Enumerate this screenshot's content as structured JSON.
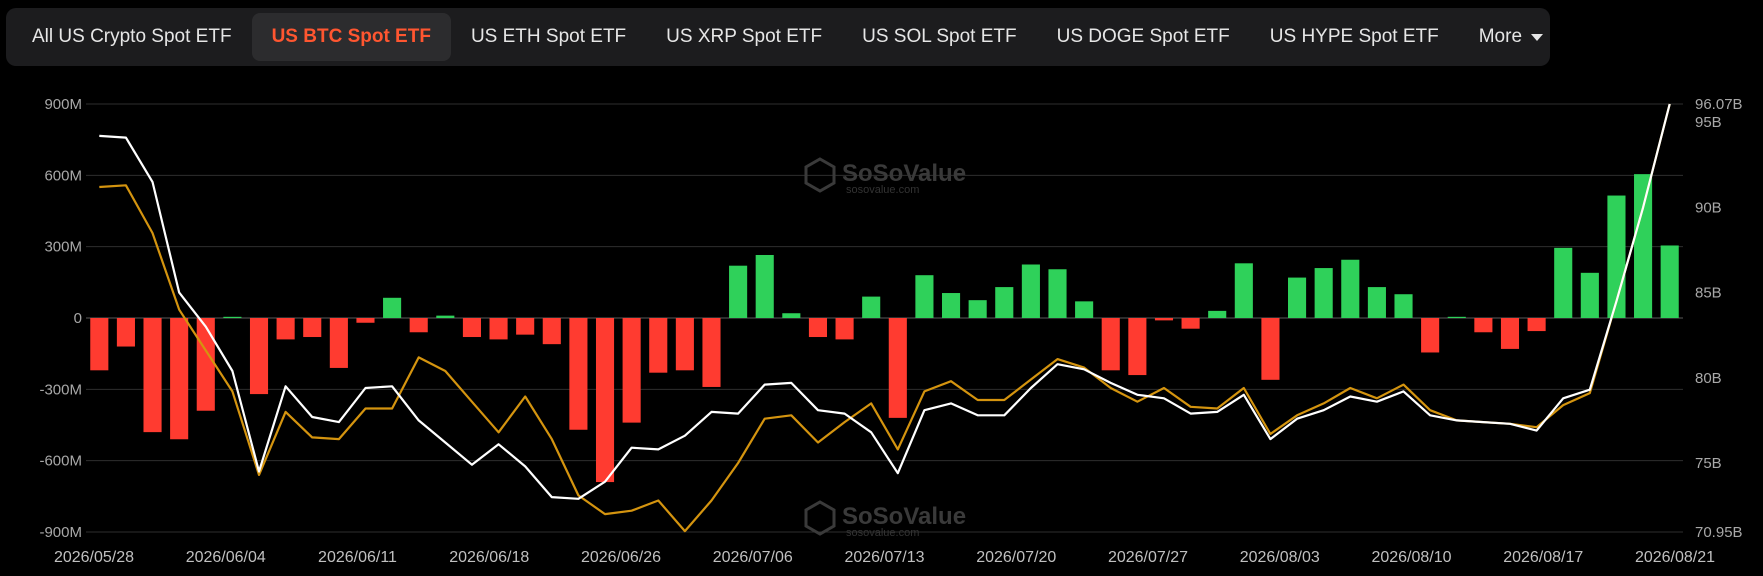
{
  "tabs": [
    {
      "label": "All US Crypto Spot ETF",
      "active": false
    },
    {
      "label": "US BTC Spot ETF",
      "active": true
    },
    {
      "label": "US ETH Spot ETF",
      "active": false
    },
    {
      "label": "US XRP Spot ETF",
      "active": false
    },
    {
      "label": "US SOL Spot ETF",
      "active": false
    },
    {
      "label": "US DOGE Spot ETF",
      "active": false
    },
    {
      "label": "US HYPE Spot ETF",
      "active": false
    }
  ],
  "more_label": "More",
  "watermark": {
    "brand": "SoSoValue",
    "site": "sosovalue.com"
  },
  "colors": {
    "inflow": "#2fd15a",
    "outflow": "#ff3b30",
    "net_assets_line": "#ffffff",
    "cumulative_line": "#d4940f",
    "active_tab": "#ff5630"
  },
  "chart_data": {
    "type": "bar",
    "x_tick_labels": [
      "2026/05/28",
      "2026/06/04",
      "2026/06/11",
      "2026/06/18",
      "2026/06/26",
      "2026/07/06",
      "2026/07/13",
      "2026/07/20",
      "2026/07/27",
      "2026/08/03",
      "2026/08/10",
      "2026/08/17",
      "2026/08/21"
    ],
    "y_left": {
      "ticks": [
        "900M",
        "600M",
        "300M",
        "0",
        "-300M",
        "-600M",
        "-900M"
      ],
      "ylim": [
        -900,
        900
      ],
      "unit": "M"
    },
    "y_right": {
      "ticks": [
        "96.07B",
        "95B",
        "90B",
        "85B",
        "80B",
        "75B",
        "70.95B"
      ],
      "ylim": [
        70.95,
        96.07
      ],
      "unit": "B"
    },
    "grid": true,
    "series": [
      {
        "kind": "bar",
        "values": [
          -220,
          -120,
          -480,
          -510,
          -390,
          5,
          -320,
          -90,
          -80,
          -210,
          -20,
          85,
          -60,
          10,
          -80,
          -90,
          -70,
          -110,
          -470,
          -690,
          -440,
          -230,
          -220,
          -290,
          220,
          265,
          20,
          -80,
          -90,
          90,
          -420,
          180,
          105,
          75,
          130,
          225,
          205,
          70,
          -220,
          -240,
          -10,
          -45,
          30,
          230,
          -260,
          170,
          210,
          245,
          130,
          100,
          -145,
          5,
          -60,
          -130,
          -55,
          295,
          190,
          515,
          605,
          305
        ]
      },
      {
        "kind": "line",
        "axis": "right",
        "values": [
          94.2,
          94.1,
          91.5,
          85.0,
          83.0,
          80.4,
          74.5,
          79.5,
          77.7,
          77.4,
          79.4,
          79.5,
          77.5,
          76.2,
          74.9,
          76.1,
          74.8,
          73.0,
          72.9,
          73.9,
          75.9,
          75.8,
          76.6,
          78.0,
          77.9,
          79.6,
          79.7,
          78.1,
          77.9,
          76.8,
          74.4,
          78.1,
          78.5,
          77.8,
          77.8,
          79.4,
          80.8,
          80.5,
          79.7,
          79.0,
          78.8,
          77.9,
          78.0,
          79.0,
          76.4,
          77.6,
          78.1,
          78.9,
          78.6,
          79.2,
          77.8,
          77.5,
          77.4,
          77.3,
          76.9,
          78.8,
          79.3,
          84.5,
          90.0,
          96.07
        ]
      },
      {
        "kind": "line",
        "axis": "right",
        "values": [
          91.2,
          91.3,
          88.5,
          84.0,
          81.6,
          79.2,
          74.3,
          78.0,
          76.5,
          76.4,
          78.2,
          78.2,
          81.2,
          80.4,
          78.6,
          76.8,
          78.9,
          76.4,
          73.1,
          72.0,
          72.2,
          72.8,
          71.0,
          72.8,
          75.0,
          77.6,
          77.8,
          76.2,
          77.4,
          78.5,
          75.8,
          79.2,
          79.8,
          78.7,
          78.7,
          79.9,
          81.1,
          80.6,
          79.4,
          78.6,
          79.4,
          78.3,
          78.2,
          79.4,
          76.7,
          77.8,
          78.5,
          79.4,
          78.8,
          79.6,
          78.1,
          77.5,
          77.4,
          77.3,
          77.1,
          78.4,
          79.1,
          84.5,
          90.0,
          96.07
        ]
      }
    ]
  }
}
